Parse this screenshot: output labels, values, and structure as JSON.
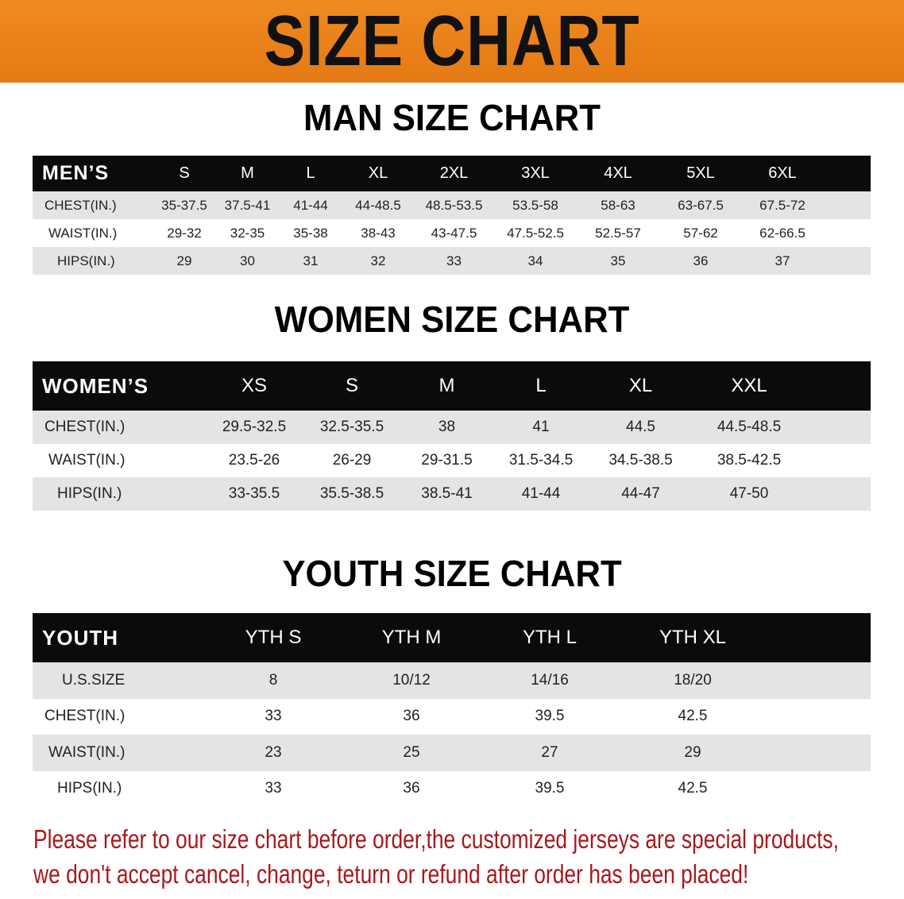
{
  "banner_title": "SIZE CHART",
  "men": {
    "title": "MAN SIZE CHART",
    "header_label": "MEN’S",
    "sizes": [
      "S",
      "M",
      "L",
      "XL",
      "2XL",
      "3XL",
      "4XL",
      "5XL",
      "6XL"
    ],
    "rows": [
      {
        "label": "CHEST(IN.)",
        "values": [
          "35-37.5",
          "37.5-41",
          "41-44",
          "44-48.5",
          "48.5-53.5",
          "53.5-58",
          "58-63",
          "63-67.5",
          "67.5-72"
        ]
      },
      {
        "label": "WAIST(IN.)",
        "values": [
          "29-32",
          "32-35",
          "35-38",
          "38-43",
          "43-47.5",
          "47.5-52.5",
          "52.5-57",
          "57-62",
          "62-66.5"
        ]
      },
      {
        "label": "HIPS(IN.)",
        "values": [
          "29",
          "30",
          "31",
          "32",
          "33",
          "34",
          "35",
          "36",
          "37"
        ]
      }
    ]
  },
  "women": {
    "title": "WOMEN SIZE CHART",
    "header_label": "WOMEN’S",
    "sizes": [
      "XS",
      "S",
      "M",
      "L",
      "XL",
      "XXL"
    ],
    "rows": [
      {
        "label": "CHEST(IN.)",
        "values": [
          "29.5-32.5",
          "32.5-35.5",
          "38",
          "41",
          "44.5",
          "44.5-48.5"
        ]
      },
      {
        "label": "WAIST(IN.)",
        "values": [
          "23.5-26",
          "26-29",
          "29-31.5",
          "31.5-34.5",
          "34.5-38.5",
          "38.5-42.5"
        ]
      },
      {
        "label": "HIPS(IN.)",
        "values": [
          "33-35.5",
          "35.5-38.5",
          "38.5-41",
          "41-44",
          "44-47",
          "47-50"
        ]
      }
    ]
  },
  "youth": {
    "title": "YOUTH SIZE CHART",
    "header_label": "YOUTH",
    "sizes": [
      "YTH S",
      "YTH M",
      "YTH L",
      "YTH XL"
    ],
    "rows": [
      {
        "label": "U.S.SIZE",
        "values": [
          "8",
          "10/12",
          "14/16",
          "18/20"
        ]
      },
      {
        "label": "CHEST(IN.)",
        "values": [
          "33",
          "36",
          "39.5",
          "42.5"
        ]
      },
      {
        "label": "WAIST(IN.)",
        "values": [
          "23",
          "25",
          "27",
          "29"
        ]
      },
      {
        "label": "HIPS(IN.)",
        "values": [
          "33",
          "36",
          "39.5",
          "42.5"
        ]
      }
    ]
  },
  "notice": {
    "line1": "Please refer to our size chart before order,the customized jerseys are special products,",
    "line2": "we don't accept cancel, change, teturn or refund after order has been placed!"
  },
  "colors": {
    "banner": "#e8801a",
    "header_row": "#0b0b0b",
    "stripe": "#e4e4e4",
    "notice": "#a8181c"
  }
}
